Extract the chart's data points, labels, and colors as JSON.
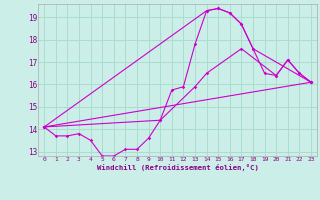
{
  "xlabel": "Windchill (Refroidissement éolien,°C)",
  "xlim": [
    -0.5,
    23.5
  ],
  "ylim": [
    12.8,
    19.6
  ],
  "xticks": [
    0,
    1,
    2,
    3,
    4,
    5,
    6,
    7,
    8,
    9,
    10,
    11,
    12,
    13,
    14,
    15,
    16,
    17,
    18,
    19,
    20,
    21,
    22,
    23
  ],
  "yticks": [
    13,
    14,
    15,
    16,
    17,
    18,
    19
  ],
  "bg_color": "#cceee8",
  "grid_color": "#aaddcc",
  "line_color": "#cc00cc",
  "lines": [
    {
      "x": [
        0,
        1,
        2,
        3,
        4,
        5,
        6,
        7,
        8,
        9,
        10,
        11,
        12,
        13,
        14,
        15,
        16,
        17,
        18,
        19,
        20,
        21,
        22,
        23
      ],
      "y": [
        14.1,
        13.7,
        13.7,
        13.8,
        13.5,
        12.8,
        12.8,
        13.1,
        13.1,
        13.6,
        14.4,
        15.75,
        15.9,
        17.8,
        19.3,
        19.4,
        19.2,
        18.7,
        17.6,
        16.5,
        16.4,
        17.1,
        16.5,
        16.1
      ]
    },
    {
      "x": [
        0,
        14,
        15,
        16,
        17,
        18,
        23
      ],
      "y": [
        14.1,
        19.3,
        19.4,
        19.2,
        18.7,
        17.6,
        16.1
      ]
    },
    {
      "x": [
        0,
        23
      ],
      "y": [
        14.1,
        16.1
      ]
    },
    {
      "x": [
        0,
        10,
        13,
        14,
        17,
        20,
        21,
        22,
        23
      ],
      "y": [
        14.1,
        14.4,
        15.9,
        16.5,
        17.6,
        16.4,
        17.1,
        16.5,
        16.1
      ]
    }
  ]
}
